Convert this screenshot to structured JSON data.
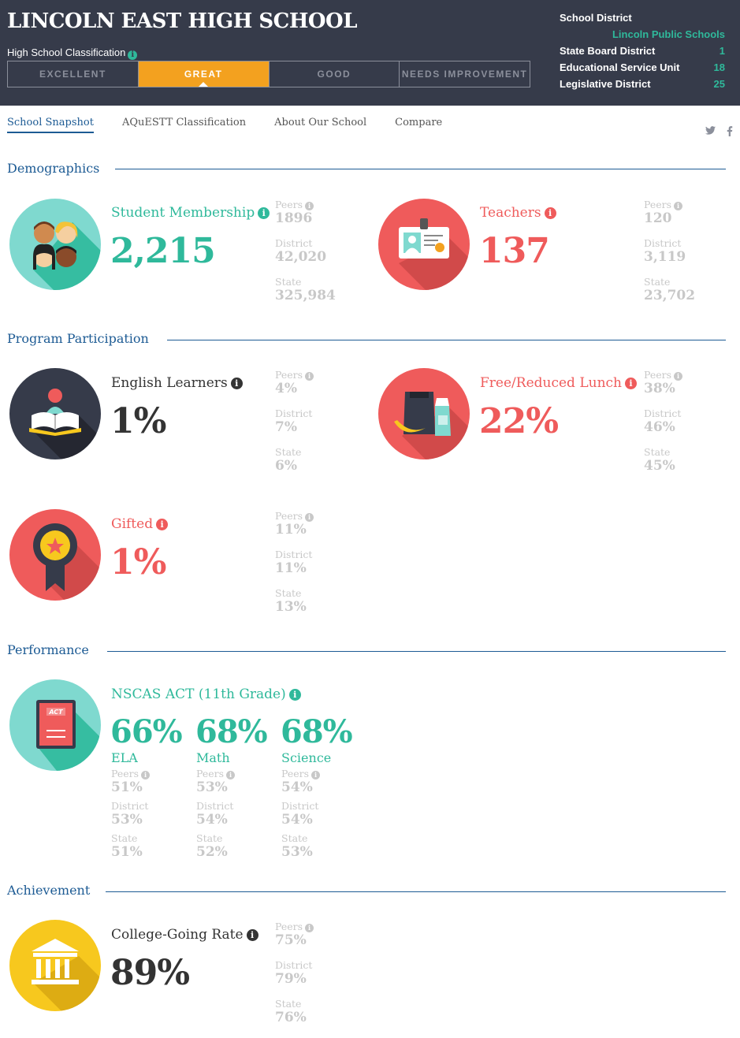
{
  "header": {
    "school_name": "LINCOLN EAST HIGH SCHOOL",
    "classification_label": "High School Classification",
    "classifications": [
      "EXCELLENT",
      "GREAT",
      "GOOD",
      "NEEDS IMPROVEMENT"
    ],
    "active_classification": "GREAT",
    "district_info": {
      "school_district_label": "School District",
      "school_district_value": "Lincoln Public Schools",
      "state_board_label": "State Board District",
      "state_board_value": "1",
      "esu_label": "Educational Service Unit",
      "esu_value": "18",
      "legislative_label": "Legislative District",
      "legislative_value": "25"
    }
  },
  "tabs": [
    "School Snapshot",
    "AQuESTT Classification",
    "About Our School",
    "Compare"
  ],
  "sections": {
    "demographics": "Demographics",
    "program": "Program Participation",
    "performance": "Performance",
    "achievement": "Achievement"
  },
  "comparison_labels": {
    "peers": "Peers",
    "district": "District",
    "state": "State"
  },
  "metrics": {
    "student_membership": {
      "title": "Student Membership",
      "value": "2,215",
      "peers": "1896",
      "district": "42,020",
      "state": "325,984"
    },
    "teachers": {
      "title": "Teachers",
      "value": "137",
      "peers": "120",
      "district": "3,119",
      "state": "23,702"
    },
    "english_learners": {
      "title": "English Learners",
      "value": "1%",
      "peers": "4%",
      "district": "7%",
      "state": "6%"
    },
    "free_lunch": {
      "title": "Free/Reduced Lunch",
      "value": "22%",
      "peers": "38%",
      "district": "46%",
      "state": "45%"
    },
    "gifted": {
      "title": "Gifted",
      "value": "1%",
      "peers": "11%",
      "district": "11%",
      "state": "13%"
    },
    "nscas": {
      "title": "NSCAS ACT (11th Grade)",
      "icon_label": "ACT",
      "subjects": [
        {
          "name": "ELA",
          "value": "66%",
          "peers": "51%",
          "district": "53%",
          "state": "51%"
        },
        {
          "name": "Math",
          "value": "68%",
          "peers": "53%",
          "district": "54%",
          "state": "52%"
        },
        {
          "name": "Science",
          "value": "68%",
          "peers": "54%",
          "district": "54%",
          "state": "53%"
        }
      ]
    },
    "college_going": {
      "title": "College-Going Rate",
      "value": "89%",
      "peers": "75%",
      "district": "79%",
      "state": "76%"
    }
  },
  "colors": {
    "header_bg": "#363b4a",
    "teal": "#2fb99b",
    "red": "#ef5b5b",
    "orange": "#f3a11f",
    "navy": "#1d5b94",
    "yellow": "#f7c81e"
  }
}
